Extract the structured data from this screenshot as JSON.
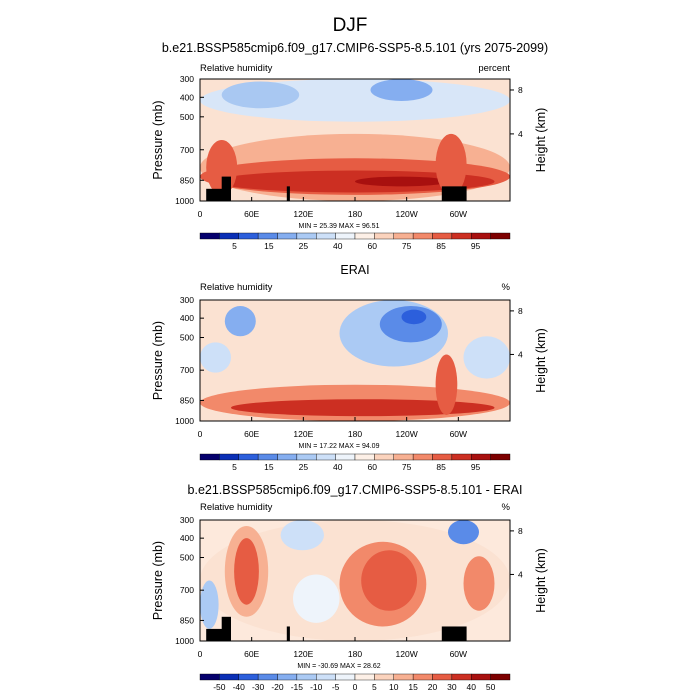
{
  "figure": {
    "title": "DJF"
  },
  "chart_data": [
    {
      "type": "heatmap",
      "title": "b.e21.BSSP585cmip6.f09_g17.CMIP6-SSP5-8.5.101 (yrs 2075-2099)",
      "left_label": "Relative humidity",
      "right_label": "percent",
      "ylabel": "Pressure (mb)",
      "y2label": "Height (km)",
      "x_ticks": [
        "0",
        "60E",
        "120E",
        "180",
        "120W",
        "60W"
      ],
      "y_ticks": [
        "300",
        "400",
        "500",
        "700",
        "850",
        "1000"
      ],
      "y2_ticks": [
        "8",
        "4"
      ],
      "stats": "MIN = 25.39  MAX = 96.51",
      "min": 25.39,
      "max": 96.51,
      "colorbar_labels": [
        "5",
        "15",
        "25",
        "40",
        "60",
        "75",
        "85",
        "95"
      ],
      "colorbar_colors": [
        "#05006d",
        "#0a2fb6",
        "#2c5fdc",
        "#5a8be8",
        "#85aef0",
        "#abcaf4",
        "#cde0f8",
        "#eef4fb",
        "#fdf0e7",
        "#fbd3bd",
        "#f7b092",
        "#f2896a",
        "#e65c43",
        "#cc2f22",
        "#a8100f",
        "#7d0000"
      ]
    },
    {
      "type": "heatmap",
      "title": "ERAI",
      "left_label": "Relative humidity",
      "right_label": "%",
      "ylabel": "Pressure (mb)",
      "y2label": "Height (km)",
      "x_ticks": [
        "0",
        "60E",
        "120E",
        "180",
        "120W",
        "60W"
      ],
      "y_ticks": [
        "300",
        "400",
        "500",
        "700",
        "850",
        "1000"
      ],
      "y2_ticks": [
        "8",
        "4"
      ],
      "stats": "MIN = 17.22  MAX = 94.09",
      "min": 17.22,
      "max": 94.09,
      "colorbar_labels": [
        "5",
        "15",
        "25",
        "40",
        "60",
        "75",
        "85",
        "95"
      ],
      "colorbar_colors": [
        "#05006d",
        "#0a2fb6",
        "#2c5fdc",
        "#5a8be8",
        "#85aef0",
        "#abcaf4",
        "#cde0f8",
        "#eef4fb",
        "#fdf0e7",
        "#fbd3bd",
        "#f7b092",
        "#f2896a",
        "#e65c43",
        "#cc2f22",
        "#a8100f",
        "#7d0000"
      ]
    },
    {
      "type": "heatmap",
      "title": "b.e21.BSSP585cmip6.f09_g17.CMIP6-SSP5-8.5.101 - ERAI",
      "left_label": "Relative humidity",
      "right_label": "%",
      "ylabel": "Pressure (mb)",
      "y2label": "Height (km)",
      "x_ticks": [
        "0",
        "60E",
        "120E",
        "180",
        "120W",
        "60W"
      ],
      "y_ticks": [
        "300",
        "400",
        "500",
        "700",
        "850",
        "1000"
      ],
      "y2_ticks": [
        "8",
        "4"
      ],
      "stats": "MIN = -30.69  MAX = 28.62",
      "min": -30.69,
      "max": 28.62,
      "colorbar_labels": [
        "-50",
        "-40",
        "-30",
        "-20",
        "-15",
        "-10",
        "-5",
        "0",
        "5",
        "10",
        "15",
        "20",
        "30",
        "40",
        "50"
      ],
      "colorbar_colors": [
        "#05006d",
        "#0a2fb6",
        "#2c5fdc",
        "#5a8be8",
        "#85aef0",
        "#abcaf4",
        "#cde0f8",
        "#eef4fb",
        "#fdf0e7",
        "#fbd3bd",
        "#f7b092",
        "#f2896a",
        "#e65c43",
        "#cc2f22",
        "#a8100f",
        "#7d0000"
      ]
    }
  ]
}
